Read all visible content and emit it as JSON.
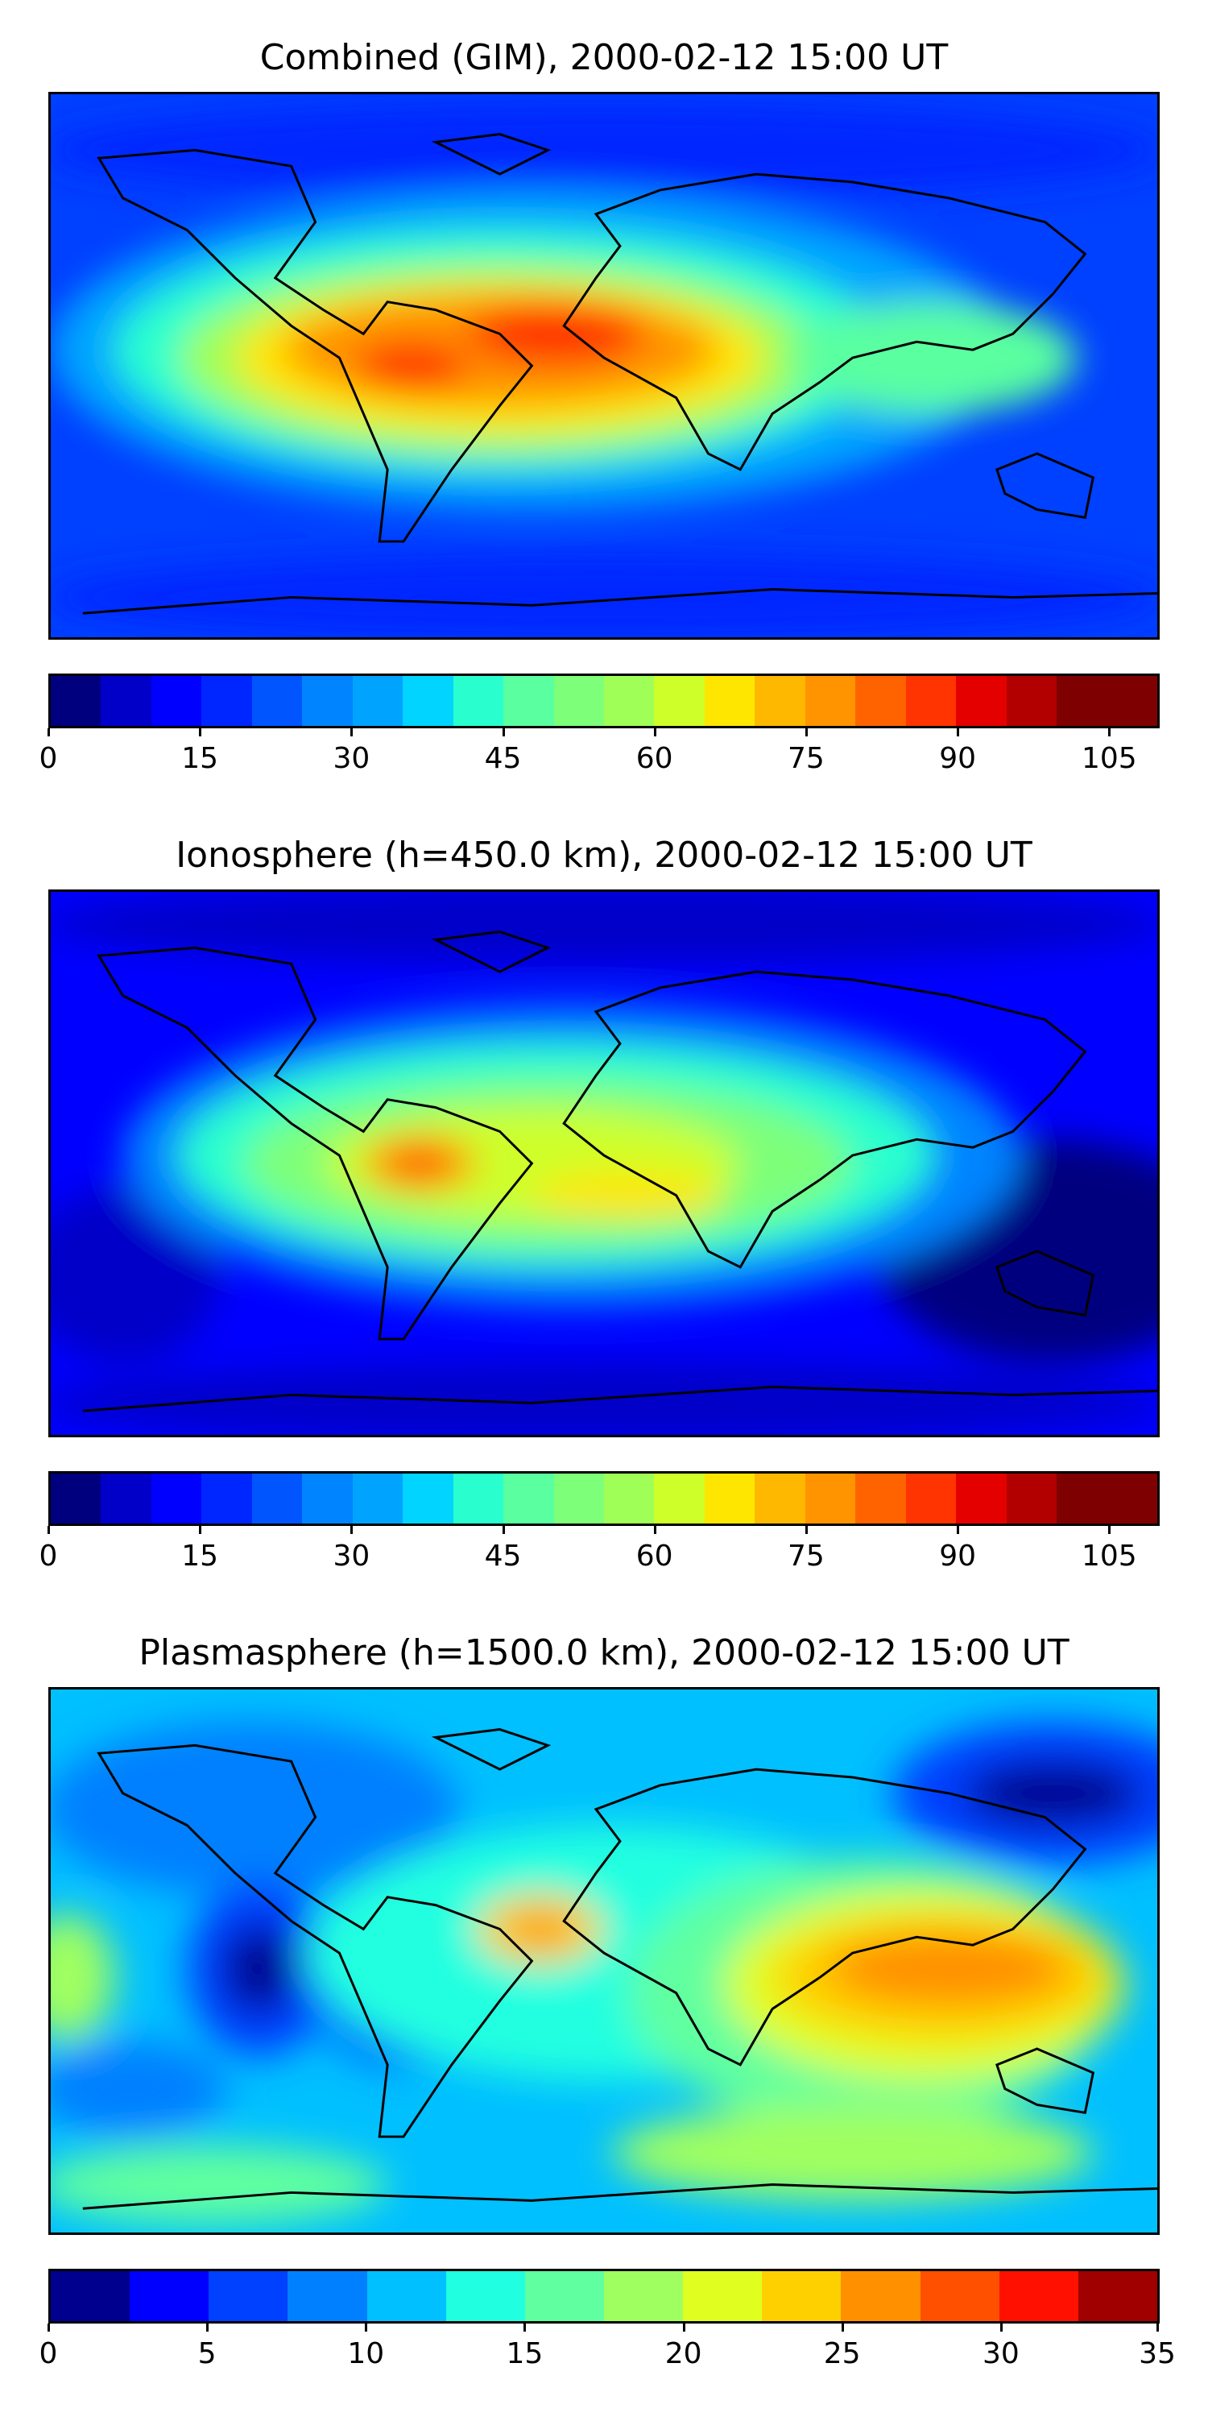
{
  "panels": [
    {
      "title": "Combined (GIM), 2000-02-12 15:00 UT",
      "colorbar": {
        "colors": [
          "#00007f",
          "#0000c8",
          "#0000ff",
          "#0026ff",
          "#0055ff",
          "#0084ff",
          "#00a4ff",
          "#00d4ff",
          "#29ffce",
          "#5affa0",
          "#7dff7a",
          "#a0ff56",
          "#ceff29",
          "#ffe600",
          "#ffb800",
          "#ff9400",
          "#ff6300",
          "#ff3400",
          "#e50000",
          "#b20000",
          "#7f0000",
          "#7f0000"
        ],
        "tick_labels": [
          "0",
          "15",
          "30",
          "45",
          "60",
          "75",
          "90",
          "105"
        ]
      }
    },
    {
      "title": "Ionosphere  (h=450.0 km), 2000-02-12 15:00 UT",
      "colorbar": {
        "colors": [
          "#00007f",
          "#0000c8",
          "#0000ff",
          "#0026ff",
          "#0055ff",
          "#0084ff",
          "#00a4ff",
          "#00d4ff",
          "#29ffce",
          "#5affa0",
          "#7dff7a",
          "#a0ff56",
          "#ceff29",
          "#ffe600",
          "#ffb800",
          "#ff9400",
          "#ff6300",
          "#ff3400",
          "#e50000",
          "#b20000",
          "#7f0000",
          "#7f0000"
        ],
        "tick_labels": [
          "0",
          "15",
          "30",
          "45",
          "60",
          "75",
          "90",
          "105"
        ]
      }
    },
    {
      "title": "Plasmasphere (h=1500.0 km), 2000-02-12 15:00 UT",
      "colorbar": {
        "colors": [
          "#00008f",
          "#0000ff",
          "#0040ff",
          "#0080ff",
          "#00c0ff",
          "#20ffe0",
          "#60ffa0",
          "#a0ff60",
          "#e0ff20",
          "#ffd000",
          "#ff9000",
          "#ff5000",
          "#ff1000",
          "#a00000"
        ],
        "tick_labels": [
          "0",
          "5",
          "10",
          "15",
          "20",
          "25",
          "30",
          "35"
        ]
      }
    }
  ]
}
